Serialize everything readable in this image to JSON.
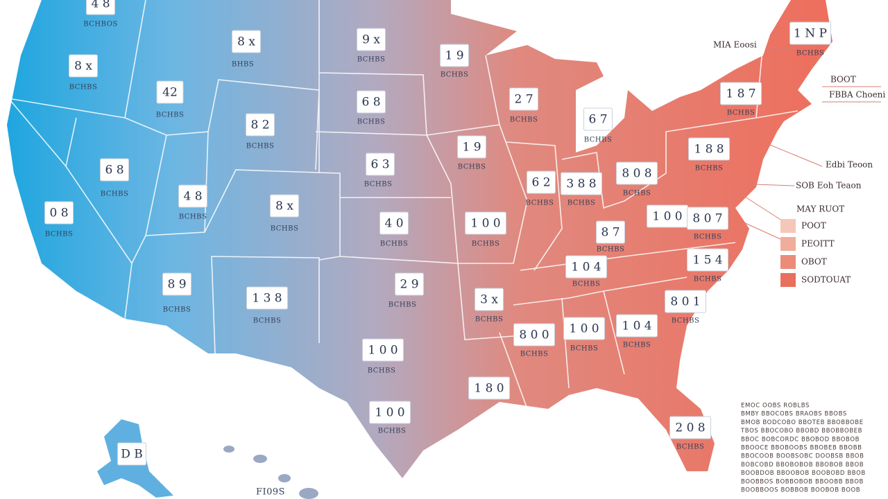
{
  "states": [
    {
      "label": "4 8",
      "sub": "BCHBOS"
    },
    {
      "label": "8 x",
      "sub": "BHBS"
    },
    {
      "label": "8 x",
      "sub": "BCHBS"
    },
    {
      "label": "42",
      "sub": "BCHBS"
    },
    {
      "label": "8 2",
      "sub": "BCHBS"
    },
    {
      "label": "9 x",
      "sub": "BCHBS"
    },
    {
      "label": "1 9",
      "sub": "BCHBS"
    },
    {
      "label": "6 8",
      "sub": "BCHBS"
    },
    {
      "label": "2 7",
      "sub": "BCHBS"
    },
    {
      "label": "6 7",
      "sub": "BCHBS"
    },
    {
      "label": "6 8",
      "sub": "BCHBS"
    },
    {
      "label": "6 3",
      "sub": "BCHBS"
    },
    {
      "label": "1 9",
      "sub": "BCHBS"
    },
    {
      "label": "4 8",
      "sub": "BCHBS"
    },
    {
      "label": "8 x",
      "sub": "BCHBS"
    },
    {
      "label": "0 8",
      "sub": "BCHBS"
    },
    {
      "label": "4 0",
      "sub": "BCHBS"
    },
    {
      "label": "1 0 0",
      "sub": "BCHBS"
    },
    {
      "label": "6 2",
      "sub": "BCHBS"
    },
    {
      "label": "3 8 8",
      "sub": "BCHBS"
    },
    {
      "label": "8 0 8",
      "sub": "BCHBS"
    },
    {
      "label": "1 8 8",
      "sub": "BCHBS"
    },
    {
      "label": "1 8 7",
      "sub": "BCHBS"
    },
    {
      "label": "1 N P",
      "sub": "BCHBS"
    },
    {
      "label": "8 7",
      "sub": "BCHBS"
    },
    {
      "label": "1 0 0"
    },
    {
      "label": "8 0 7",
      "sub": "BCHBS"
    },
    {
      "label": "1 0 4",
      "sub": "BCHBS"
    },
    {
      "label": "1 5 4",
      "sub": "BCHBS"
    },
    {
      "label": "8 0 1",
      "sub": "BCHBS"
    },
    {
      "label": "8 9",
      "sub": "BCHBS"
    },
    {
      "label": "1 3 8",
      "sub": "BCHBS"
    },
    {
      "label": "2 9",
      "sub": "BCHBS"
    },
    {
      "label": "3 x",
      "sub": "BCHBS"
    },
    {
      "label": "1 0 0",
      "sub": "BCHBS"
    },
    {
      "label": "8 0 0",
      "sub": "BCHBS"
    },
    {
      "label": "1 0 0",
      "sub": "BCHBS"
    },
    {
      "label": "1 0 4",
      "sub": "BCHBS"
    },
    {
      "label": "1 8 0"
    },
    {
      "label": "1 0 0",
      "sub": "BCHBS"
    },
    {
      "label": "2 0 8",
      "sub": "BCHBS"
    },
    {
      "label": "D B"
    }
  ],
  "callouts": [
    "MIA Eoosi",
    "BOOT",
    "FBBA Choeni",
    "Edbi Teoon",
    "SOB Eoh Teaon"
  ],
  "legend": {
    "title": "MAY RUOT",
    "items": [
      "POOT",
      "PEOITT",
      "OBOT",
      "SODTOUAT"
    ]
  },
  "notes": [
    "EMOC OOBS ROBLBS",
    "BMBY BBOCOBS BRAOBS BBOBS",
    "BMOB BODCOBO BBOTEB BBOBBOBE",
    "TBOS BBOCOBO BBOBD BBOBBOBEB",
    "BBOC BOBCORDC BBOBOD BBOBOB",
    "BBOOCE BBOBOOBS BBOBEB BBOBB",
    "BBOCOOB BOOBSOBC DOOBSB BBOB",
    "BOBCOBD BBOBOBOB BBOBOB BBOB",
    "BOOBDOB BBOOBOB BOOBOBD BBOB",
    "BOOBBOS BOBBOBOB BBOOBB BBOB",
    "BOOBBOOS BOBBOB BOOBOB BOOB"
  ],
  "footer": "FI09S"
}
